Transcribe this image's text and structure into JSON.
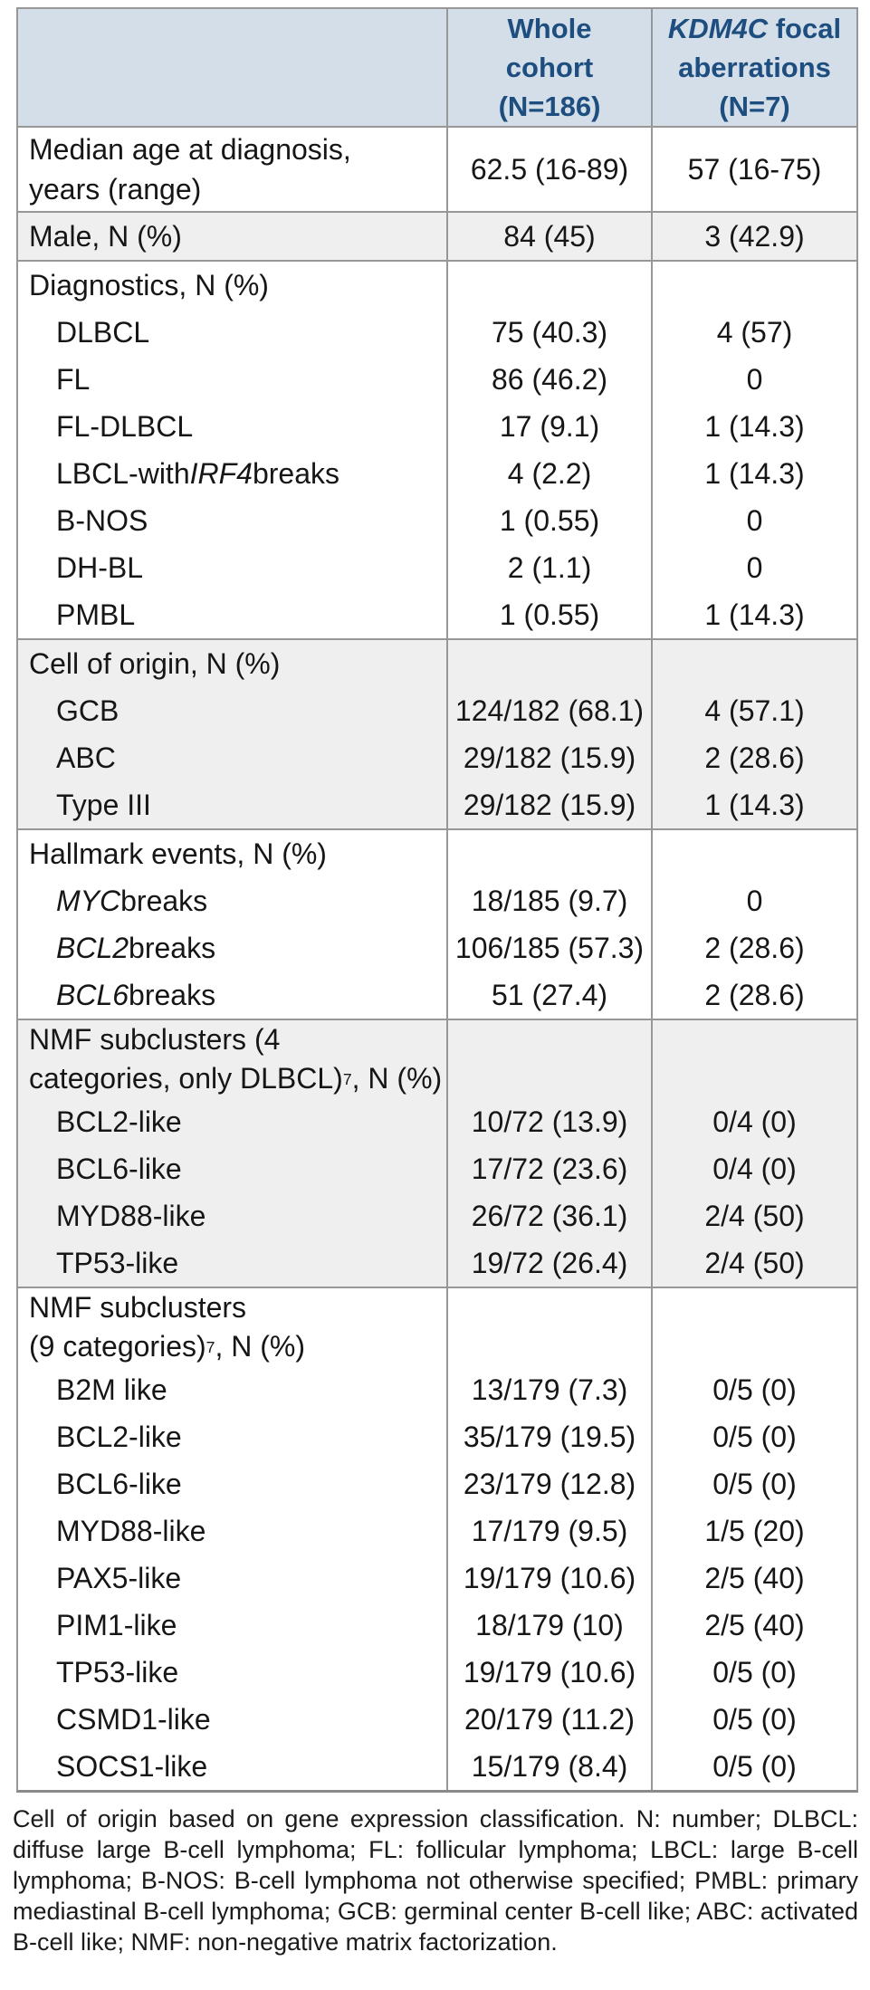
{
  "colors": {
    "header_bg": "#d3dee8",
    "header_text": "#1d4e7f",
    "alt_row_bg": "#efefef",
    "border": "#979797"
  },
  "header": {
    "col2": {
      "l1": "Whole",
      "l2": "cohort",
      "l3": "(N=186)"
    },
    "col3": {
      "gene": "KDM4C",
      "rest": " focal",
      "l2": "aberrations",
      "l3": "(N=7)"
    }
  },
  "sections": [
    {
      "rows": [
        {
          "l1": "Median age at diagnosis,",
          "l2": "years (range)",
          "v1": "62.5 (16-89)",
          "v2": "57 (16-75)"
        }
      ]
    },
    {
      "rows": [
        {
          "label": "Male, N (%)",
          "v1": "84 (45)",
          "v2": "3 (42.9)"
        }
      ]
    },
    {
      "title": "Diagnostics, N (%)",
      "rows": [
        {
          "label": "DLBCL",
          "v1": "75 (40.3)",
          "v2": "4 (57)"
        },
        {
          "label": "FL",
          "v1": "86 (46.2)",
          "v2": "0"
        },
        {
          "label": "FL-DLBCL",
          "v1": "17 (9.1)",
          "v2": "1 (14.3)"
        },
        {
          "pre": "LBCL-with ",
          "gene": "IRF4",
          "post": " breaks",
          "v1": "4 (2.2)",
          "v2": "1 (14.3)"
        },
        {
          "label": "B-NOS",
          "v1": "1 (0.55)",
          "v2": "0"
        },
        {
          "label": "DH-BL",
          "v1": "2 (1.1)",
          "v2": "0"
        },
        {
          "label": "PMBL",
          "v1": "1 (0.55)",
          "v2": "1 (14.3)"
        }
      ]
    },
    {
      "title": "Cell of origin, N (%)",
      "rows": [
        {
          "label": "GCB",
          "v1": "124/182 (68.1)",
          "v2": "4 (57.1)"
        },
        {
          "label": "ABC",
          "v1": "29/182 (15.9)",
          "v2": "2 (28.6)"
        },
        {
          "label": "Type III",
          "v1": "29/182 (15.9)",
          "v2": "1 (14.3)"
        }
      ]
    },
    {
      "title": "Hallmark events, N (%)",
      "rows": [
        {
          "gene": "MYC",
          "post": " breaks",
          "v1": "18/185 (9.7)",
          "v2": "0"
        },
        {
          "gene": "BCL2",
          "post": " breaks",
          "v1": "106/185 (57.3)",
          "v2": "2 (28.6)"
        },
        {
          "gene": "BCL6",
          "post": " breaks",
          "v1": "51 (27.4)",
          "v2": "2 (28.6)"
        }
      ]
    },
    {
      "title_l1": "NMF subclusters (4",
      "title_l2a": "categories, only DLBCL)",
      "title_sup": "7",
      "title_l2b": ", N (%)",
      "rows": [
        {
          "label": "BCL2-like",
          "v1": "10/72 (13.9)",
          "v2": "0/4 (0)"
        },
        {
          "label": "BCL6-like",
          "v1": "17/72 (23.6)",
          "v2": "0/4 (0)"
        },
        {
          "label": "MYD88-like",
          "v1": "26/72 (36.1)",
          "v2": "2/4 (50)"
        },
        {
          "label": "TP53-like",
          "v1": "19/72 (26.4)",
          "v2": "2/4 (50)"
        }
      ]
    },
    {
      "title_l1": "NMF subclusters",
      "title_l2a": "(9 categories)",
      "title_sup": "7",
      "title_l2b": ", N (%)",
      "rows": [
        {
          "label": "B2M like",
          "v1": "13/179 (7.3)",
          "v2": "0/5 (0)"
        },
        {
          "label": "BCL2-like",
          "v1": "35/179 (19.5)",
          "v2": "0/5 (0)"
        },
        {
          "label": "BCL6-like",
          "v1": "23/179 (12.8)",
          "v2": "0/5 (0)"
        },
        {
          "label": "MYD88-like",
          "v1": "17/179 (9.5)",
          "v2": "1/5 (20)"
        },
        {
          "label": "PAX5-like",
          "v1": "19/179 (10.6)",
          "v2": "2/5 (40)"
        },
        {
          "label": "PIM1-like",
          "v1": "18/179 (10)",
          "v2": "2/5 (40)"
        },
        {
          "label": "TP53-like",
          "v1": "19/179 (10.6)",
          "v2": "0/5 (0)"
        },
        {
          "label": "CSMD1-like",
          "v1": "20/179 (11.2)",
          "v2": "0/5 (0)"
        },
        {
          "label": "SOCS1-like",
          "v1": "15/179 (8.4)",
          "v2": "0/5 (0)"
        }
      ]
    }
  ],
  "footnote": "Cell of origin based on gene expression classification. N: number; DLBCL: diffuse large B-cell lymphoma; FL: follicular lymphoma; LBCL: large B-cell lymphoma; B-NOS: B-cell lymphoma not otherwise specified; PMBL: primary mediastinal B-cell lymphoma; GCB: germinal center B-cell like; ABC: activated B-cell like; NMF: non-negative matrix factorization."
}
